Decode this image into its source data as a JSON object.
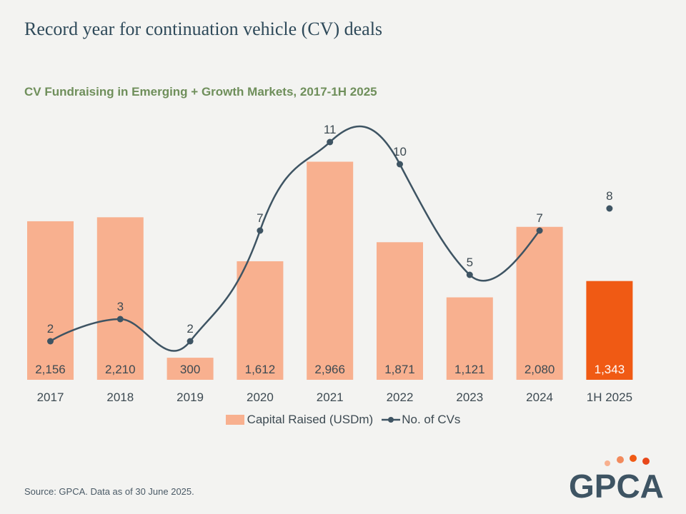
{
  "title": "Record year for continuation vehicle (CV) deals",
  "chart_data": {
    "type": "bar",
    "title": "CV Fundraising in Emerging + Growth Markets, 2017-1H 2025",
    "categories": [
      "2017",
      "2018",
      "2019",
      "2020",
      "2021",
      "2022",
      "2023",
      "2024",
      "1H 2025"
    ],
    "series": [
      {
        "name": "Capital Raised (USDm)",
        "type": "bar",
        "values": [
          2156,
          2210,
          300,
          1612,
          2966,
          1871,
          1121,
          2080,
          1343
        ],
        "labels": [
          "2,156",
          "2,210",
          "300",
          "1,612",
          "2,966",
          "1,871",
          "1,121",
          "2,080",
          "1,343"
        ],
        "color": "#f8b08f",
        "highlight_color": "#f05a14",
        "highlight_index": 8
      },
      {
        "name": "No. of CVs",
        "type": "line",
        "smooth": true,
        "values": [
          2,
          3,
          2,
          7,
          11,
          10,
          5,
          7,
          8
        ],
        "labels": [
          "2",
          "3",
          "2",
          "7",
          "11",
          "10",
          "5",
          "7",
          "8"
        ],
        "line_through_index": 7,
        "color": "#3e5463"
      }
    ],
    "legend_position": "bottom",
    "grid": false
  },
  "source": "Source: GPCA. Data as of 30 June 2025.",
  "logo": {
    "text": "GPCA",
    "dot_colors": [
      "#f8b08f",
      "#f28a5c",
      "#f05a14",
      "#e8481a"
    ]
  }
}
